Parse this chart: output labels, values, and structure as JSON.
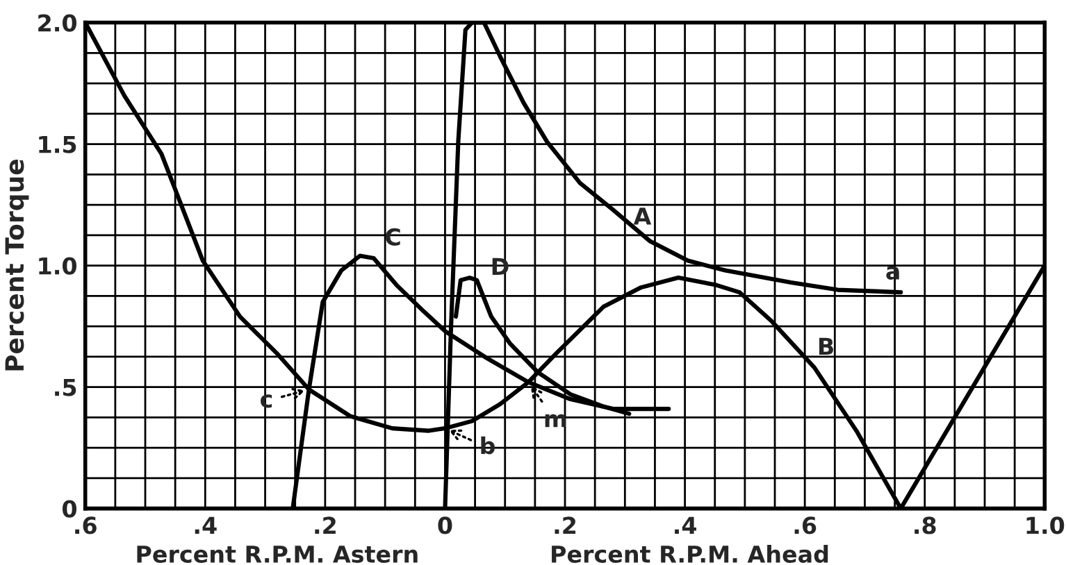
{
  "chart_data": {
    "type": "line",
    "ylabel": "Percent Torque",
    "xlabel": "Percent R.P.M. Astern",
    "xlim": [
      -0.6,
      1.0
    ],
    "ylim": [
      0,
      2.0
    ],
    "xticks": [
      {
        "value": -0.6,
        "label": ".6"
      },
      {
        "value": -0.55,
        "label": null
      },
      {
        "value": -0.5,
        "label": null
      },
      {
        "value": -0.45,
        "label": null
      },
      {
        "value": -0.4,
        "label": ".4"
      },
      {
        "value": -0.35,
        "label": null
      },
      {
        "value": -0.3,
        "label": null
      },
      {
        "value": -0.25,
        "label": null
      },
      {
        "value": -0.2,
        "label": ".2"
      },
      {
        "value": -0.15,
        "label": null
      },
      {
        "value": -0.1,
        "label": null
      },
      {
        "value": -0.05,
        "label": null
      },
      0,
      {
        "value": 0.05,
        "label": null
      },
      {
        "value": 0.1,
        "label": null
      },
      {
        "value": 0.15,
        "label": null
      },
      {
        "value": 0.2,
        "label": ".2"
      },
      {
        "value": 0.25,
        "label": null
      },
      {
        "value": 0.3,
        "label": null
      },
      {
        "value": 0.35,
        "label": null
      },
      {
        "value": 0.4,
        "label": ".4"
      },
      {
        "value": 0.45,
        "label": null
      },
      {
        "value": 0.5,
        "label": null
      },
      {
        "value": 0.55,
        "label": null
      },
      {
        "value": 0.6,
        "label": ".6"
      },
      {
        "value": 0.65,
        "label": null
      },
      {
        "value": 0.7,
        "label": null
      },
      {
        "value": 0.75,
        "label": null
      },
      {
        "value": 0.8,
        "label": ".8"
      },
      {
        "value": 0.85,
        "label": null
      },
      {
        "value": 0.9,
        "label": null
      },
      {
        "value": 0.95,
        "label": null
      },
      {
        "value": 1.0,
        "label": "1.0"
      }
    ],
    "yticks": [
      0,
      {
        "value": 0.125,
        "label": null
      },
      {
        "value": 0.25,
        "label": null
      },
      {
        "value": 0.375,
        "label": null
      },
      {
        "value": 0.5,
        "label": ".5"
      },
      {
        "value": 0.625,
        "label": null
      },
      {
        "value": 0.75,
        "label": null
      },
      {
        "value": 0.875,
        "label": null
      },
      {
        "value": 1.0,
        "label": "1.0"
      },
      {
        "value": 1.125,
        "label": null
      },
      {
        "value": 1.25,
        "label": null
      },
      {
        "value": 1.375,
        "label": null
      },
      1.5,
      {
        "value": 1.625,
        "label": null
      },
      {
        "value": 1.75,
        "label": null
      },
      {
        "value": 1.875,
        "label": null
      },
      {
        "value": 2.0,
        "label": "2.0"
      }
    ],
    "grid": true,
    "line_style": "solid",
    "series": [
      {
        "color": "#000000",
        "x": [
          -0.6,
          -0.535,
          -0.473,
          -0.404,
          -0.342,
          -0.281,
          -0.227,
          -0.158,
          -0.088,
          -0.027,
          0.0,
          0.045,
          0.092,
          0.139,
          0.186,
          0.264,
          0.327,
          0.389,
          0.452,
          0.491,
          0.545,
          0.616,
          0.686,
          0.76,
          1.0
        ],
        "values": [
          2.0,
          1.7,
          1.46,
          1.02,
          0.79,
          0.64,
          0.49,
          0.38,
          0.33,
          0.32,
          0.33,
          0.36,
          0.43,
          0.52,
          0.64,
          0.83,
          0.91,
          0.95,
          0.92,
          0.89,
          0.77,
          0.58,
          0.32,
          0.0,
          1.0
        ]
      },
      {
        "color": "#000000",
        "x": [
          0.0,
          0.01,
          0.022,
          0.034,
          0.045,
          0.065,
          0.092,
          0.131,
          0.17,
          0.225,
          0.28,
          0.342,
          0.405,
          0.467,
          0.577,
          0.655,
          0.76
        ],
        "values": [
          0.0,
          0.75,
          1.51,
          1.97,
          2.0,
          2.0,
          1.86,
          1.67,
          1.51,
          1.34,
          1.23,
          1.1,
          1.02,
          0.98,
          0.93,
          0.9,
          0.89
        ]
      },
      {
        "color": "#000000",
        "x": [
          -0.254,
          -0.227,
          -0.204,
          -0.173,
          -0.142,
          -0.119,
          -0.081,
          -0.035,
          0.0,
          0.069,
          0.139,
          0.209,
          0.28,
          0.373
        ],
        "values": [
          0.0,
          0.49,
          0.85,
          0.98,
          1.04,
          1.03,
          0.92,
          0.81,
          0.73,
          0.62,
          0.52,
          0.45,
          0.41,
          0.41
        ]
      },
      {
        "color": "#000000",
        "x": [
          0.018,
          0.026,
          0.041,
          0.053,
          0.077,
          0.108,
          0.155,
          0.209,
          0.264,
          0.307
        ],
        "values": [
          0.79,
          0.94,
          0.95,
          0.94,
          0.79,
          0.68,
          0.56,
          0.47,
          0.42,
          0.39
        ]
      }
    ],
    "annotations": [
      {
        "text": "A",
        "x": 0.342,
        "y": 1.1
      },
      {
        "text": "a",
        "x": 0.76,
        "y": 0.89
      },
      {
        "text": "B",
        "x": 0.616,
        "y": 0.58
      },
      {
        "text": "C",
        "x": -0.119,
        "y": 1.03
      },
      {
        "text": "D",
        "x": 0.053,
        "y": 0.94
      },
      {
        "text": "c",
        "x": -0.227,
        "y": 0.49
      },
      {
        "text": "b",
        "x": 0.0,
        "y": 0.33
      },
      {
        "text": "m",
        "x": 0.139,
        "y": 0.52
      },
      "Percent R.P.M. Ahead"
    ]
  }
}
